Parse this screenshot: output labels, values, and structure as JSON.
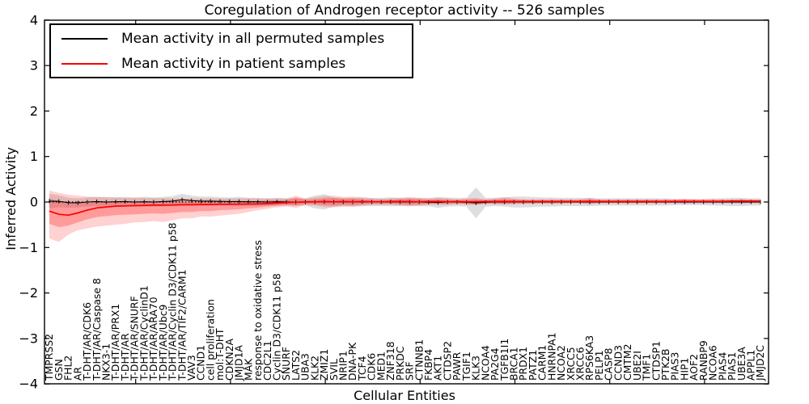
{
  "figure": {
    "title": "Coregulation of Androgen receptor activity -- 526 samples",
    "background": "#ffffff"
  },
  "chart_data": {
    "type": "line",
    "title": "Coregulation of Androgen receptor activity -- 526 samples",
    "xlabel": "Cellular Entities",
    "ylabel": "Inferred Activity",
    "ylim": [
      -4,
      4
    ],
    "yticks": [
      4,
      3,
      2,
      1,
      0,
      -1,
      -2,
      -3,
      -4
    ],
    "grid": false,
    "legend_position": "upper left",
    "zero_line": {
      "style": "dotted",
      "color": "#000000",
      "y": 0
    },
    "categories": [
      "TMPRSS2",
      "GSN",
      "FHL2",
      "AR",
      "T-DHT/AR/CDK6",
      "T-DHT/AR/Caspase 8",
      "NKX3-1",
      "T-DHT/AR/PRX1",
      "T-DHT/AR",
      "T-DHT/AR/SNURF",
      "T-DHT/AR/CyclinD1",
      "T-DHT/AR/ARA70",
      "T-DHT/AR/Ubc9",
      "T-DHT/AR/Cyclin D3/CDK11 p58",
      "T-DHT/AR/TIF2/CARM1",
      "VAV3",
      "CCND1",
      "cell proliferation",
      "mol:T-DHT",
      "CDKN2A",
      "JMJD1A",
      "MAK",
      "response to oxidative stress",
      "CDC2L1",
      "Cyclin D3/CDK11 p58",
      "SNURF",
      "LATS2",
      "UBA3",
      "KLK2",
      "ZMIZ1",
      "SVIL",
      "NRIP1",
      "DNA-PK",
      "TCF4",
      "CDK6",
      "MED1",
      "ZNF318",
      "PRKDC",
      "SRF",
      "CTNNB1",
      "FKBP4",
      "AKT1",
      "CTDSP2",
      "PAWR",
      "TGIF1",
      "KLK3",
      "NCOA4",
      "PA2G4",
      "TGFB1I1",
      "BRCA1",
      "PRDX1",
      "PATZ1",
      "CARM1",
      "HNRNPA1",
      "NCOA2",
      "XRCC5",
      "XRCC6",
      "RPS6KA3",
      "PELP1",
      "CASP8",
      "CCND3",
      "CMTM2",
      "UBE2I",
      "TMF1",
      "CTDSP1",
      "PTK2B",
      "PIAS3",
      "HIP1",
      "AOF2",
      "RANBP9",
      "NCOA6",
      "PIAS4",
      "PIAS1",
      "UBE3A",
      "APPL1",
      "JMJD2C"
    ],
    "series": [
      {
        "name": "Mean activity in all permuted samples",
        "color": "#000000",
        "band_color": "#999999",
        "values": [
          0.02,
          0.015,
          -0.015,
          -0.02,
          0.0,
          0.01,
          0.0,
          0.005,
          0.01,
          0.0,
          0.005,
          0.0,
          0.01,
          0.02,
          0.05,
          0.03,
          0.02,
          0.02,
          0.015,
          0.01,
          0.01,
          0.005,
          0.005,
          0.0,
          0.005,
          0.0,
          0.0,
          0.0,
          0.0,
          0.005,
          0.0,
          0.0,
          0.0,
          0.005,
          0.0,
          0.0,
          0.005,
          0.0,
          0.0,
          0.0,
          -0.005,
          -0.01,
          0.0,
          0.0,
          -0.005,
          -0.02,
          -0.005,
          0.0,
          0.0,
          0.0,
          0.0,
          0.0,
          0.0,
          0.0,
          0.0,
          0.0,
          0.0,
          0.0,
          0.0,
          0.0,
          0.0,
          0.0,
          0.0,
          0.0,
          0.0,
          0.0,
          0.0,
          0.0,
          0.0,
          0.0,
          0.0,
          0.0,
          0.0,
          0.0,
          0.0,
          0.0
        ],
        "band_std": [
          0.16,
          0.13,
          0.11,
          0.1,
          0.1,
          0.1,
          0.11,
          0.1,
          0.1,
          0.1,
          0.11,
          0.1,
          0.1,
          0.11,
          0.13,
          0.11,
          0.1,
          0.1,
          0.09,
          0.09,
          0.1,
          0.09,
          0.09,
          0.08,
          0.09,
          0.08,
          0.08,
          0.08,
          0.14,
          0.17,
          0.1,
          0.09,
          0.09,
          0.1,
          0.09,
          0.09,
          0.1,
          0.09,
          0.09,
          0.09,
          0.09,
          0.12,
          0.1,
          0.09,
          0.1,
          0.34,
          0.1,
          0.09,
          0.1,
          0.12,
          0.12,
          0.11,
          0.1,
          0.1,
          0.09,
          0.09,
          0.09,
          0.09,
          0.08,
          0.08,
          0.08,
          0.08,
          0.08,
          0.08,
          0.08,
          0.08,
          0.07,
          0.07,
          0.07,
          0.07,
          0.08,
          0.08,
          0.09,
          0.09,
          0.08,
          0.08
        ]
      },
      {
        "name": "Mean activity in patient samples",
        "color": "#ff0000",
        "band_color": "#ff0000",
        "values": [
          -0.2,
          -0.27,
          -0.29,
          -0.24,
          -0.18,
          -0.13,
          -0.11,
          -0.09,
          -0.085,
          -0.08,
          -0.075,
          -0.07,
          -0.07,
          -0.065,
          -0.06,
          -0.06,
          -0.055,
          -0.055,
          -0.05,
          -0.05,
          -0.048,
          -0.045,
          -0.042,
          -0.035,
          -0.025,
          -0.015,
          -0.005,
          0.0,
          0.005,
          0.01,
          0.005,
          0.01,
          0.005,
          0.01,
          0.005,
          0.005,
          0.01,
          0.01,
          0.01,
          0.005,
          0.01,
          0.01,
          0.005,
          0.01,
          0.005,
          0.005,
          0.01,
          0.01,
          0.015,
          0.01,
          0.01,
          0.01,
          0.01,
          0.01,
          0.01,
          0.01,
          0.01,
          0.015,
          0.01,
          0.01,
          0.01,
          0.01,
          0.01,
          0.01,
          0.01,
          0.01,
          0.015,
          0.015,
          0.015,
          0.015,
          0.015,
          0.015,
          0.02,
          0.02,
          0.02,
          0.02
        ],
        "band_outer_upper": [
          0.25,
          0.2,
          0.16,
          0.14,
          0.12,
          0.11,
          0.1,
          0.1,
          0.09,
          0.09,
          0.09,
          0.085,
          0.085,
          0.08,
          0.08,
          0.075,
          0.075,
          0.08,
          0.075,
          0.075,
          0.08,
          0.08,
          0.075,
          0.08,
          0.08,
          0.08,
          0.14,
          0.08,
          0.1,
          0.13,
          0.14,
          0.11,
          0.12,
          0.1,
          0.08,
          0.07,
          0.08,
          0.09,
          0.11,
          0.09,
          0.08,
          0.09,
          0.08,
          0.06,
          0.08,
          0.09,
          0.06,
          0.08,
          0.11,
          0.08,
          0.06,
          0.06,
          0.06,
          0.06,
          0.06,
          0.06,
          0.06,
          0.09,
          0.06,
          0.06,
          0.06,
          0.06,
          0.06,
          0.06,
          0.06,
          0.06,
          0.06,
          0.07,
          0.06,
          0.06,
          0.06,
          0.06,
          0.06,
          0.07,
          0.06,
          0.06
        ],
        "band_outer_lower": [
          -0.8,
          -0.88,
          -0.72,
          -0.62,
          -0.58,
          -0.54,
          -0.52,
          -0.5,
          -0.48,
          -0.45,
          -0.44,
          -0.42,
          -0.44,
          -0.4,
          -0.36,
          -0.36,
          -0.32,
          -0.32,
          -0.3,
          -0.28,
          -0.26,
          -0.22,
          -0.18,
          -0.15,
          -0.12,
          -0.1,
          -0.13,
          -0.07,
          -0.08,
          -0.11,
          -0.12,
          -0.1,
          -0.11,
          -0.08,
          -0.06,
          -0.06,
          -0.06,
          -0.08,
          -0.09,
          -0.08,
          -0.06,
          -0.06,
          -0.06,
          -0.05,
          -0.06,
          -0.07,
          -0.05,
          -0.05,
          -0.06,
          -0.05,
          -0.04,
          -0.04,
          -0.04,
          -0.04,
          -0.04,
          -0.03,
          -0.03,
          -0.05,
          -0.03,
          -0.03,
          -0.03,
          -0.03,
          -0.03,
          -0.03,
          -0.03,
          -0.03,
          -0.03,
          -0.04,
          -0.03,
          -0.03,
          -0.03,
          -0.03,
          -0.03,
          -0.04,
          -0.03,
          -0.03
        ],
        "band_inner_upper": [
          0.08,
          0.02,
          -0.02,
          0.0,
          -0.02,
          0.0,
          0.0,
          0.02,
          0.0,
          0.0,
          0.02,
          0.0,
          0.0,
          0.02,
          0.02,
          0.0,
          0.0,
          0.02,
          0.0,
          0.0,
          0.02,
          0.02,
          0.02,
          0.03,
          0.04,
          0.04,
          0.1,
          0.05,
          0.06,
          0.08,
          0.09,
          0.07,
          0.08,
          0.06,
          0.05,
          0.04,
          0.05,
          0.06,
          0.07,
          0.06,
          0.05,
          0.06,
          0.05,
          0.04,
          0.05,
          0.06,
          0.04,
          0.05,
          0.07,
          0.05,
          0.04,
          0.04,
          0.04,
          0.04,
          0.04,
          0.04,
          0.04,
          0.06,
          0.04,
          0.04,
          0.04,
          0.04,
          0.04,
          0.04,
          0.04,
          0.04,
          0.04,
          0.05,
          0.04,
          0.04,
          0.04,
          0.04,
          0.04,
          0.05,
          0.04,
          0.04
        ],
        "band_inner_lower": [
          -0.48,
          -0.55,
          -0.52,
          -0.45,
          -0.38,
          -0.33,
          -0.31,
          -0.29,
          -0.28,
          -0.27,
          -0.26,
          -0.25,
          -0.26,
          -0.24,
          -0.22,
          -0.22,
          -0.2,
          -0.2,
          -0.18,
          -0.17,
          -0.16,
          -0.14,
          -0.12,
          -0.1,
          -0.08,
          -0.06,
          -0.08,
          -0.04,
          -0.05,
          -0.07,
          -0.08,
          -0.06,
          -0.07,
          -0.05,
          -0.04,
          -0.04,
          -0.04,
          -0.05,
          -0.06,
          -0.05,
          -0.04,
          -0.04,
          -0.04,
          -0.03,
          -0.04,
          -0.05,
          -0.03,
          -0.03,
          -0.04,
          -0.03,
          -0.03,
          -0.03,
          -0.02,
          -0.03,
          -0.02,
          -0.02,
          -0.02,
          -0.03,
          -0.02,
          -0.02,
          -0.02,
          -0.02,
          -0.02,
          -0.02,
          -0.02,
          -0.02,
          -0.01,
          -0.02,
          -0.01,
          -0.01,
          -0.01,
          -0.01,
          -0.01,
          -0.02,
          -0.01,
          -0.01
        ]
      }
    ]
  }
}
